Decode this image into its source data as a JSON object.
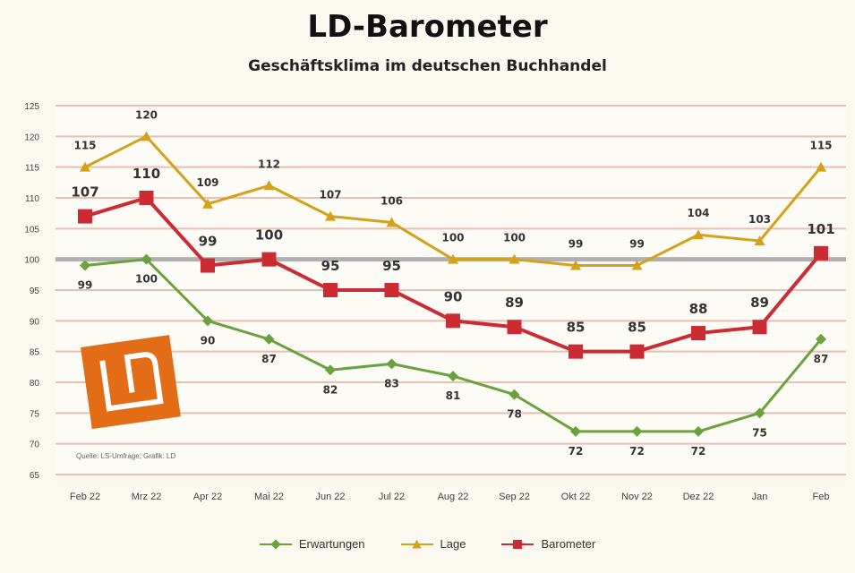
{
  "title": "LD-Barometer",
  "subtitle": "Geschäftsklima im deutschen Buchhandel",
  "source_note": "Quelle: LS-Umfrage; Grafik: LD",
  "colors": {
    "erwartungen": "#6ba23f",
    "lage": "#d3a21a",
    "barometer": "#cc2b34",
    "reference": "#b0b0b0",
    "grid": "#e8bfb0",
    "logo": "#e36d16"
  },
  "chart_data": {
    "type": "line",
    "categories": [
      "Feb 22",
      "Mrz 22",
      "Apr 22",
      "Mai 22",
      "Jun 22",
      "Jul 22",
      "Aug 22",
      "Sep 22",
      "Okt 22",
      "Nov 22",
      "Dez 22",
      "Jan",
      "Feb"
    ],
    "ylim": [
      65,
      125
    ],
    "yticks": [
      65,
      70,
      75,
      80,
      85,
      90,
      95,
      100,
      105,
      110,
      115,
      120,
      125
    ],
    "reference_line": 100,
    "grid": true,
    "legend_position": "bottom",
    "series": [
      {
        "name": "Erwartungen",
        "key": "erwartungen",
        "marker": "diamond",
        "values": [
          99,
          100,
          90,
          87,
          82,
          83,
          81,
          78,
          72,
          72,
          72,
          75,
          87
        ]
      },
      {
        "name": "Lage",
        "key": "lage",
        "marker": "triangle",
        "values": [
          115,
          120,
          109,
          112,
          107,
          106,
          100,
          100,
          99,
          99,
          104,
          103,
          115
        ]
      },
      {
        "name": "Barometer",
        "key": "barometer",
        "marker": "square",
        "values": [
          107,
          110,
          99,
          100,
          95,
          95,
          90,
          89,
          85,
          85,
          88,
          89,
          101
        ]
      }
    ]
  }
}
